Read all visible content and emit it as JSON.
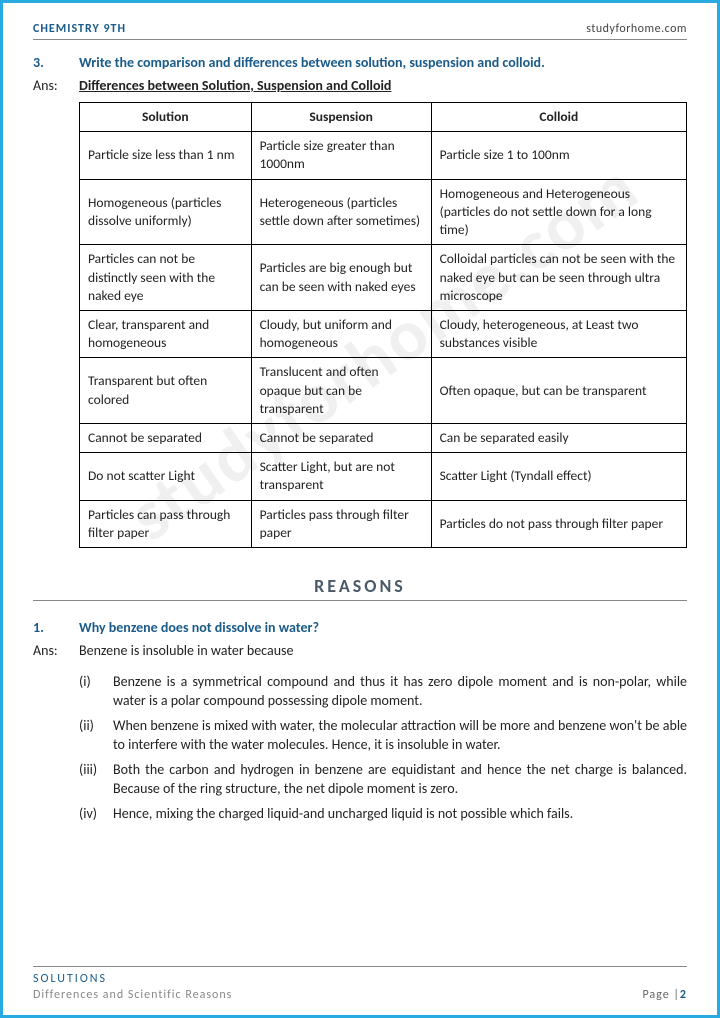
{
  "header": {
    "left": "CHEMISTRY 9TH",
    "right": "studyforhome.com"
  },
  "q3": {
    "num": "3.",
    "text": "Write the comparison and differences between solution, suspension and colloid.",
    "ans_label": "Ans:",
    "heading": "Differences between Solution, Suspension and Colloid"
  },
  "table": {
    "headers": [
      "Solution",
      "Suspension",
      "Colloid"
    ],
    "rows": [
      [
        "Particle size less than 1 nm",
        "Particle size greater than 1000nm",
        "Particle size 1 to 100nm"
      ],
      [
        "Homogeneous (particles dissolve uniformly)",
        "Heterogeneous (particles settle down after sometimes)",
        "Homogeneous and Heterogeneous (particles do not settle down for a long time)"
      ],
      [
        "Particles can not be distinctly seen with the naked eye",
        "Particles are big enough but can be seen with naked eyes",
        "Colloidal particles can not be seen with the naked eye but can be seen through ultra microscope"
      ],
      [
        "Clear, transparent and homogeneous",
        "Cloudy, but uniform and homogeneous",
        "Cloudy, heterogeneous, at Least two substances visible"
      ],
      [
        "Transparent but often colored",
        "Translucent and often opaque but can be transparent",
        "Often opaque, but can be transparent"
      ],
      [
        "Cannot be separated",
        "Cannot be separated",
        "Can be separated easily"
      ],
      [
        "Do not scatter Light",
        "Scatter Light, but are not transparent",
        "Scatter Light (Tyndall effect)"
      ],
      [
        "Particles can pass through filter paper",
        "Particles pass through filter paper",
        "Particles do not pass through filter paper"
      ]
    ]
  },
  "section": {
    "title": "REASONS"
  },
  "q1": {
    "num": "1.",
    "text": "Why benzene does not dissolve in water?",
    "ans_label": "Ans:",
    "intro": "Benzene is insoluble in water because",
    "points": [
      {
        "n": "(i)",
        "t": "Benzene is a symmetrical compound and thus it has zero dipole moment and is non-polar, while water is a polar compound possessing dipole moment."
      },
      {
        "n": "(ii)",
        "t": "When benzene is mixed with water, the molecular attraction will be more and benzene won't be able to interfere with the water molecules. Hence, it is insoluble in water."
      },
      {
        "n": "(iii)",
        "t": "Both the carbon and hydrogen in benzene are equidistant and hence the net charge is balanced. Because of the ring structure, the net dipole moment is zero."
      },
      {
        "n": "(iv)",
        "t": "Hence, mixing the charged liquid-and uncharged liquid is not possible which fails."
      }
    ]
  },
  "footer": {
    "line1": "SOLUTIONS",
    "line2": "Differences and Scientific Reasons",
    "page_label": "Page |",
    "page_num": "2"
  },
  "watermark": "studyforhome.com",
  "colors": {
    "border": "#29abe2",
    "heading": "#1a5b8a",
    "text": "#222222",
    "muted": "#888888"
  }
}
